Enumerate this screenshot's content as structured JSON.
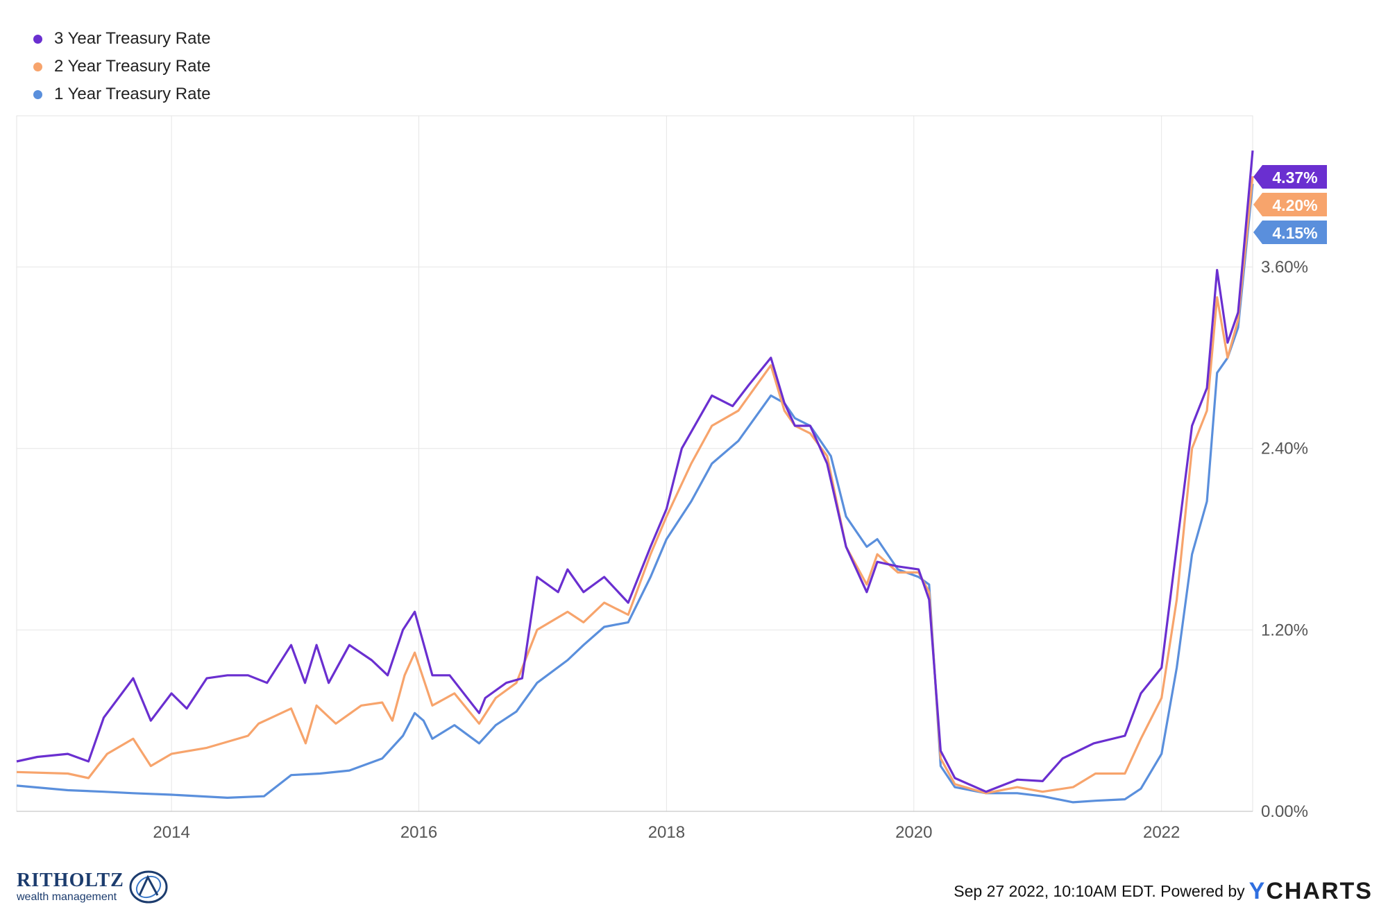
{
  "legend": [
    {
      "label": "3 Year Treasury Rate",
      "color": "#6a2fd0"
    },
    {
      "label": "2 Year Treasury Rate",
      "color": "#f7a46c"
    },
    {
      "label": "1 Year Treasury Rate",
      "color": "#5a8fdc"
    }
  ],
  "footer": {
    "source": "Sep 27 2022, 10:10AM EDT. Powered by",
    "brand_y": "Y",
    "brand_rest": "CHARTS"
  },
  "logo": {
    "name": "RITHOLTZ",
    "subtitle": "wealth management"
  },
  "chart_data": {
    "type": "line",
    "ylim": [
      0,
      4.6
    ],
    "xlim": [
      "2012-10-01",
      "2022-09-27"
    ],
    "y_ticks": [
      {
        "value": 0,
        "label": "0.00%"
      },
      {
        "value": 1.2,
        "label": "1.20%"
      },
      {
        "value": 2.4,
        "label": "2.40%"
      },
      {
        "value": 3.6,
        "label": "3.60%"
      }
    ],
    "x_ticks": [
      {
        "date": "2014-01-01",
        "label": "2014"
      },
      {
        "date": "2016-01-01",
        "label": "2016"
      },
      {
        "date": "2018-01-01",
        "label": "2018"
      },
      {
        "date": "2020-01-01",
        "label": "2020"
      },
      {
        "date": "2022-01-01",
        "label": "2022"
      }
    ],
    "grid": true,
    "legend_position": "top-left",
    "series": [
      {
        "name": "3 Year Treasury Rate",
        "color": "#6a2fd0",
        "end_label": "4.37%",
        "points": [
          [
            "2012-10-01",
            0.33
          ],
          [
            "2012-12-01",
            0.36
          ],
          [
            "2013-03-01",
            0.38
          ],
          [
            "2013-05-01",
            0.33
          ],
          [
            "2013-06-15",
            0.62
          ],
          [
            "2013-09-10",
            0.88
          ],
          [
            "2013-11-01",
            0.6
          ],
          [
            "2014-01-01",
            0.78
          ],
          [
            "2014-02-15",
            0.68
          ],
          [
            "2014-04-15",
            0.88
          ],
          [
            "2014-06-15",
            0.9
          ],
          [
            "2014-08-15",
            0.9
          ],
          [
            "2014-10-10",
            0.85
          ],
          [
            "2014-12-20",
            1.1
          ],
          [
            "2015-01-30",
            0.85
          ],
          [
            "2015-03-05",
            1.1
          ],
          [
            "2015-04-10",
            0.85
          ],
          [
            "2015-06-10",
            1.1
          ],
          [
            "2015-08-15",
            1.0
          ],
          [
            "2015-10-01",
            0.9
          ],
          [
            "2015-11-15",
            1.2
          ],
          [
            "2015-12-20",
            1.32
          ],
          [
            "2016-02-10",
            0.9
          ],
          [
            "2016-04-01",
            0.9
          ],
          [
            "2016-06-27",
            0.65
          ],
          [
            "2016-07-15",
            0.75
          ],
          [
            "2016-09-15",
            0.85
          ],
          [
            "2016-11-01",
            0.88
          ],
          [
            "2016-12-15",
            1.55
          ],
          [
            "2017-02-15",
            1.45
          ],
          [
            "2017-03-15",
            1.6
          ],
          [
            "2017-05-01",
            1.45
          ],
          [
            "2017-07-01",
            1.55
          ],
          [
            "2017-09-10",
            1.38
          ],
          [
            "2017-11-15",
            1.75
          ],
          [
            "2018-01-01",
            2.0
          ],
          [
            "2018-02-15",
            2.4
          ],
          [
            "2018-05-15",
            2.75
          ],
          [
            "2018-07-15",
            2.68
          ],
          [
            "2018-09-01",
            2.82
          ],
          [
            "2018-11-05",
            3.0
          ],
          [
            "2018-12-15",
            2.7
          ],
          [
            "2019-01-15",
            2.55
          ],
          [
            "2019-03-01",
            2.55
          ],
          [
            "2019-04-20",
            2.3
          ],
          [
            "2019-06-15",
            1.75
          ],
          [
            "2019-08-15",
            1.45
          ],
          [
            "2019-09-15",
            1.65
          ],
          [
            "2019-11-15",
            1.62
          ],
          [
            "2020-01-15",
            1.6
          ],
          [
            "2020-02-15",
            1.4
          ],
          [
            "2020-03-20",
            0.4
          ],
          [
            "2020-05-01",
            0.22
          ],
          [
            "2020-08-01",
            0.13
          ],
          [
            "2020-11-01",
            0.21
          ],
          [
            "2021-01-15",
            0.2
          ],
          [
            "2021-03-15",
            0.35
          ],
          [
            "2021-06-15",
            0.45
          ],
          [
            "2021-09-15",
            0.5
          ],
          [
            "2021-11-01",
            0.78
          ],
          [
            "2022-01-01",
            0.95
          ],
          [
            "2022-02-15",
            1.75
          ],
          [
            "2022-04-01",
            2.55
          ],
          [
            "2022-05-15",
            2.8
          ],
          [
            "2022-06-14",
            3.58
          ],
          [
            "2022-07-15",
            3.1
          ],
          [
            "2022-08-15",
            3.3
          ],
          [
            "2022-09-27",
            4.37
          ]
        ]
      },
      {
        "name": "2 Year Treasury Rate",
        "color": "#f7a46c",
        "end_label": "4.20%",
        "points": [
          [
            "2012-10-01",
            0.26
          ],
          [
            "2013-03-01",
            0.25
          ],
          [
            "2013-05-01",
            0.22
          ],
          [
            "2013-06-25",
            0.38
          ],
          [
            "2013-09-10",
            0.48
          ],
          [
            "2013-11-01",
            0.3
          ],
          [
            "2014-01-01",
            0.38
          ],
          [
            "2014-04-15",
            0.42
          ],
          [
            "2014-08-15",
            0.5
          ],
          [
            "2014-09-15",
            0.58
          ],
          [
            "2014-12-20",
            0.68
          ],
          [
            "2015-02-01",
            0.45
          ],
          [
            "2015-03-05",
            0.7
          ],
          [
            "2015-05-01",
            0.58
          ],
          [
            "2015-07-15",
            0.7
          ],
          [
            "2015-09-15",
            0.72
          ],
          [
            "2015-10-15",
            0.6
          ],
          [
            "2015-11-20",
            0.9
          ],
          [
            "2015-12-20",
            1.05
          ],
          [
            "2016-02-10",
            0.7
          ],
          [
            "2016-04-15",
            0.78
          ],
          [
            "2016-06-27",
            0.58
          ],
          [
            "2016-08-15",
            0.75
          ],
          [
            "2016-10-15",
            0.85
          ],
          [
            "2016-12-15",
            1.2
          ],
          [
            "2017-03-15",
            1.32
          ],
          [
            "2017-05-01",
            1.25
          ],
          [
            "2017-07-01",
            1.38
          ],
          [
            "2017-09-10",
            1.3
          ],
          [
            "2017-11-15",
            1.7
          ],
          [
            "2018-01-01",
            1.95
          ],
          [
            "2018-03-15",
            2.3
          ],
          [
            "2018-05-15",
            2.55
          ],
          [
            "2018-08-01",
            2.65
          ],
          [
            "2018-11-05",
            2.95
          ],
          [
            "2018-12-15",
            2.65
          ],
          [
            "2019-01-15",
            2.55
          ],
          [
            "2019-03-01",
            2.5
          ],
          [
            "2019-04-20",
            2.35
          ],
          [
            "2019-06-15",
            1.75
          ],
          [
            "2019-08-15",
            1.5
          ],
          [
            "2019-09-15",
            1.7
          ],
          [
            "2019-11-15",
            1.58
          ],
          [
            "2020-01-15",
            1.58
          ],
          [
            "2020-02-15",
            1.45
          ],
          [
            "2020-03-20",
            0.35
          ],
          [
            "2020-05-01",
            0.18
          ],
          [
            "2020-08-01",
            0.12
          ],
          [
            "2020-11-01",
            0.16
          ],
          [
            "2021-01-15",
            0.13
          ],
          [
            "2021-04-15",
            0.16
          ],
          [
            "2021-06-20",
            0.25
          ],
          [
            "2021-09-15",
            0.25
          ],
          [
            "2021-11-01",
            0.48
          ],
          [
            "2022-01-01",
            0.75
          ],
          [
            "2022-02-15",
            1.4
          ],
          [
            "2022-04-01",
            2.4
          ],
          [
            "2022-05-15",
            2.65
          ],
          [
            "2022-06-14",
            3.4
          ],
          [
            "2022-07-15",
            3.0
          ],
          [
            "2022-08-15",
            3.25
          ],
          [
            "2022-09-27",
            4.2
          ]
        ]
      },
      {
        "name": "1 Year Treasury Rate",
        "color": "#5a8fdc",
        "end_label": "4.15%",
        "points": [
          [
            "2012-10-01",
            0.17
          ],
          [
            "2013-03-01",
            0.14
          ],
          [
            "2013-06-15",
            0.13
          ],
          [
            "2013-09-10",
            0.12
          ],
          [
            "2014-01-01",
            0.11
          ],
          [
            "2014-06-15",
            0.09
          ],
          [
            "2014-10-01",
            0.1
          ],
          [
            "2014-12-20",
            0.24
          ],
          [
            "2015-03-15",
            0.25
          ],
          [
            "2015-06-10",
            0.27
          ],
          [
            "2015-09-15",
            0.35
          ],
          [
            "2015-11-15",
            0.5
          ],
          [
            "2015-12-20",
            0.65
          ],
          [
            "2016-01-15",
            0.6
          ],
          [
            "2016-02-10",
            0.48
          ],
          [
            "2016-04-15",
            0.57
          ],
          [
            "2016-06-27",
            0.45
          ],
          [
            "2016-08-15",
            0.57
          ],
          [
            "2016-10-15",
            0.66
          ],
          [
            "2016-12-15",
            0.85
          ],
          [
            "2017-03-15",
            1.0
          ],
          [
            "2017-05-01",
            1.1
          ],
          [
            "2017-07-01",
            1.22
          ],
          [
            "2017-09-10",
            1.25
          ],
          [
            "2017-11-15",
            1.55
          ],
          [
            "2018-01-01",
            1.8
          ],
          [
            "2018-03-15",
            2.05
          ],
          [
            "2018-05-15",
            2.3
          ],
          [
            "2018-08-01",
            2.45
          ],
          [
            "2018-11-05",
            2.75
          ],
          [
            "2018-12-15",
            2.7
          ],
          [
            "2019-01-15",
            2.6
          ],
          [
            "2019-03-01",
            2.55
          ],
          [
            "2019-05-01",
            2.35
          ],
          [
            "2019-06-15",
            1.95
          ],
          [
            "2019-08-15",
            1.75
          ],
          [
            "2019-09-15",
            1.8
          ],
          [
            "2019-11-15",
            1.6
          ],
          [
            "2020-01-15",
            1.55
          ],
          [
            "2020-02-15",
            1.5
          ],
          [
            "2020-03-20",
            0.3
          ],
          [
            "2020-05-01",
            0.16
          ],
          [
            "2020-08-01",
            0.12
          ],
          [
            "2020-11-01",
            0.12
          ],
          [
            "2021-01-15",
            0.1
          ],
          [
            "2021-04-15",
            0.06
          ],
          [
            "2021-06-20",
            0.07
          ],
          [
            "2021-09-15",
            0.08
          ],
          [
            "2021-11-01",
            0.15
          ],
          [
            "2022-01-01",
            0.38
          ],
          [
            "2022-02-15",
            0.95
          ],
          [
            "2022-04-01",
            1.7
          ],
          [
            "2022-05-15",
            2.05
          ],
          [
            "2022-06-14",
            2.9
          ],
          [
            "2022-07-15",
            3.0
          ],
          [
            "2022-08-15",
            3.2
          ],
          [
            "2022-09-27",
            4.15
          ]
        ]
      }
    ]
  }
}
